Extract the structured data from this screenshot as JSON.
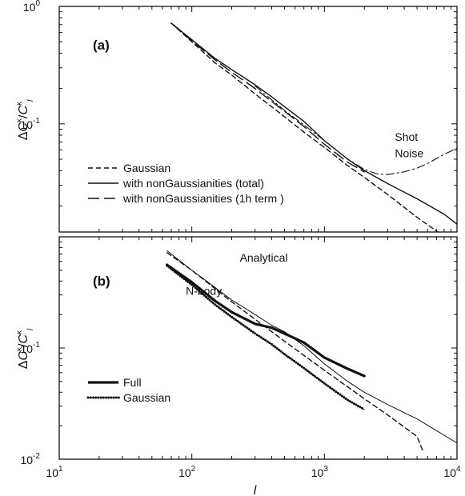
{
  "chart_data": [
    {
      "type": "line",
      "panel_label": "(a)",
      "xscale": "log",
      "yscale": "log",
      "xlim": [
        70,
        10000
      ],
      "ylim": [
        0.012,
        1.0
      ],
      "ylabel_parts": {
        "delta": "Δ",
        "C": "C",
        "sup": "κ",
        "slash": "/",
        "C2": "C",
        "sub": "l"
      },
      "yticks": [
        {
          "value": 0.1,
          "mant": "10",
          "exp": "-1"
        },
        {
          "value": 1.0,
          "mant": "10",
          "exp": "0"
        }
      ],
      "xticks": [],
      "legend_position": "lower-left",
      "series": [
        {
          "name": "Gaussian",
          "style": "short-dash",
          "color": "#111111",
          "x": [
            70,
            100,
            150,
            200,
            300,
            500,
            700,
            1000,
            1500,
            2000,
            3000,
            5000,
            8000,
            10000
          ],
          "y": [
            0.72,
            0.5,
            0.33,
            0.26,
            0.18,
            0.115,
            0.085,
            0.063,
            0.044,
            0.035,
            0.025,
            0.016,
            0.011,
            0.009
          ]
        },
        {
          "name": "with nonGaussianities (total)",
          "style": "solid",
          "color": "#111111",
          "x": [
            70,
            100,
            150,
            200,
            300,
            400,
            500,
            700,
            1000,
            1500,
            2000,
            3000,
            5000,
            8000,
            10000
          ],
          "y": [
            0.72,
            0.52,
            0.36,
            0.29,
            0.215,
            0.17,
            0.14,
            0.105,
            0.072,
            0.05,
            0.04,
            0.031,
            0.023,
            0.017,
            0.014
          ]
        },
        {
          "name": "with nonGaussianities (1h term  )",
          "style": "long-dash",
          "color": "#111111",
          "x": [
            70,
            100,
            150,
            200,
            300,
            400,
            500,
            700,
            1000,
            1500,
            2000
          ],
          "y": [
            0.72,
            0.51,
            0.35,
            0.275,
            0.2,
            0.155,
            0.128,
            0.095,
            0.067,
            0.047,
            0.039
          ]
        },
        {
          "name": "Shot Noise",
          "style": "dash-dot",
          "color": "#111111",
          "x": [
            300,
            500,
            700,
            1000,
            1500,
            2000,
            2500,
            3000,
            4000,
            5000,
            6000,
            8000,
            10000
          ],
          "y": [
            0.21,
            0.13,
            0.098,
            0.072,
            0.05,
            0.041,
            0.0375,
            0.037,
            0.039,
            0.042,
            0.046,
            0.055,
            0.062
          ]
        }
      ],
      "annotations": [
        {
          "text": "Shot",
          "x": 3400,
          "y": 0.072
        },
        {
          "text": "Noise",
          "x": 3400,
          "y": 0.052
        }
      ]
    },
    {
      "type": "line",
      "panel_label": "(b)",
      "xscale": "log",
      "yscale": "log",
      "xlim": [
        10,
        10000
      ],
      "ylim": [
        0.01,
        1.0
      ],
      "xlabel": "l",
      "ylabel_parts": {
        "delta": "Δ",
        "C": "C",
        "sup": "κ",
        "slash": "/",
        "C2": "C",
        "sub": "l"
      },
      "xticks": [
        {
          "value": 10,
          "mant": "10",
          "exp": "1"
        },
        {
          "value": 100,
          "mant": "10",
          "exp": "2"
        },
        {
          "value": 1000,
          "mant": "10",
          "exp": "3"
        },
        {
          "value": 10000,
          "mant": "10",
          "exp": "4"
        }
      ],
      "yticks": [
        {
          "value": 0.01,
          "mant": "10",
          "exp": "-2"
        },
        {
          "value": 0.1,
          "mant": "10",
          "exp": "-1"
        }
      ],
      "legend_position": "lower-left",
      "series": [
        {
          "name": "Full",
          "style": "thick-solid",
          "color": "#111111",
          "x": [
            65,
            100,
            150,
            200,
            300,
            400,
            500,
            700,
            1000,
            1500,
            2000
          ],
          "y": [
            0.56,
            0.39,
            0.265,
            0.21,
            0.165,
            0.152,
            0.135,
            0.112,
            0.082,
            0.065,
            0.056
          ]
        },
        {
          "name": "Gaussian",
          "style": "dotted-markers",
          "color": "#111111",
          "x": [
            65,
            100,
            150,
            200,
            300,
            400,
            500,
            700,
            1000,
            1500,
            2000
          ],
          "y": [
            0.55,
            0.37,
            0.245,
            0.19,
            0.135,
            0.108,
            0.088,
            0.066,
            0.048,
            0.034,
            0.028
          ]
        },
        {
          "name": "Analytical",
          "style": "thin-solid",
          "color": "#111111",
          "x": [
            65,
            100,
            150,
            200,
            300,
            400,
            500,
            700,
            1000,
            1500,
            2000,
            3000,
            5000,
            10000
          ],
          "y": [
            0.75,
            0.5,
            0.35,
            0.27,
            0.2,
            0.16,
            0.14,
            0.105,
            0.072,
            0.05,
            0.04,
            0.031,
            0.023,
            0.014
          ]
        },
        {
          "name": "Analytical Gaussian",
          "style": "short-dash",
          "color": "#111111",
          "legend": false,
          "x": [
            65,
            100,
            200,
            500,
            1000,
            2000,
            3000,
            5000,
            5500
          ],
          "y": [
            0.72,
            0.5,
            0.26,
            0.115,
            0.063,
            0.035,
            0.025,
            0.016,
            0.012
          ]
        }
      ],
      "annotations": [
        {
          "text": "Analytical",
          "x": 230,
          "y": 0.6
        },
        {
          "text": "N-body",
          "x": 90,
          "y": 0.3
        }
      ]
    }
  ]
}
